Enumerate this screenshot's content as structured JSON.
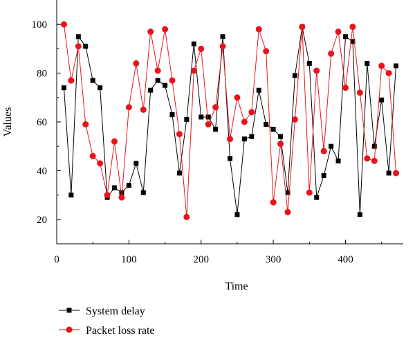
{
  "chart_data": {
    "type": "line",
    "xlabel": "Time",
    "ylabel": "Values",
    "xlim": [
      0,
      480
    ],
    "ylim": [
      10,
      110
    ],
    "x_ticks": [
      0,
      100,
      200,
      300,
      400
    ],
    "y_ticks": [
      20,
      40,
      60,
      80,
      100
    ],
    "legend_position": "bottom-left",
    "grid": false,
    "x": [
      10,
      20,
      30,
      40,
      50,
      60,
      70,
      80,
      90,
      100,
      110,
      120,
      130,
      140,
      150,
      160,
      170,
      180,
      190,
      200,
      210,
      220,
      230,
      240,
      250,
      260,
      270,
      280,
      290,
      300,
      310,
      320,
      330,
      340,
      350,
      360,
      370,
      380,
      390,
      400,
      410,
      420,
      430,
      440,
      450,
      460,
      470
    ],
    "series": [
      {
        "name": "System delay",
        "color": "#000000",
        "marker": "square",
        "values": [
          74,
          30,
          95,
          91,
          77,
          74,
          29,
          33,
          31,
          34,
          43,
          31,
          73,
          77,
          75,
          63,
          39,
          61,
          92,
          62,
          62,
          57,
          95,
          45,
          22,
          53,
          54,
          73,
          59,
          57,
          54,
          31,
          79,
          99,
          84,
          29,
          38,
          50,
          44,
          95,
          93,
          22,
          84,
          50,
          69,
          39,
          83
        ]
      },
      {
        "name": "Packet loss rate",
        "color": "#e8141b",
        "marker": "circle",
        "values": [
          100,
          77,
          91,
          59,
          46,
          43,
          30,
          52,
          29,
          66,
          84,
          65,
          97,
          81,
          98,
          77,
          55,
          21,
          81,
          90,
          59,
          66,
          91,
          53,
          70,
          60,
          64,
          98,
          89,
          27,
          51,
          23,
          61,
          99,
          31,
          81,
          48,
          88,
          97,
          74,
          99,
          72,
          45,
          44,
          83,
          80,
          39
        ]
      }
    ]
  }
}
